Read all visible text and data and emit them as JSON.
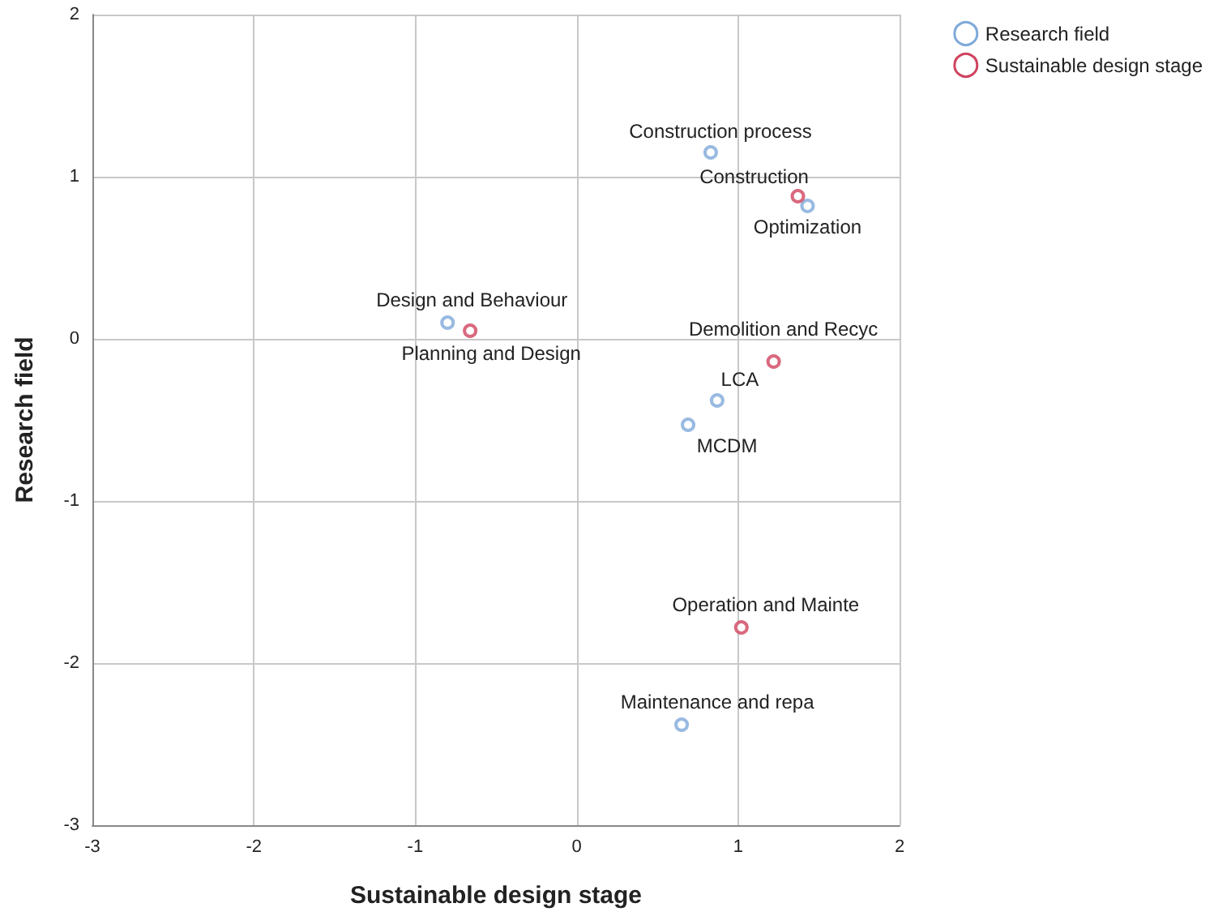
{
  "chart_data": {
    "type": "scatter",
    "xlabel": "Sustainable design stage",
    "ylabel": "Research field",
    "series": [
      {
        "name": "Research field",
        "color": "#7fa9d9",
        "x": [
          0.83,
          1.43,
          -0.8,
          0.87,
          0.69,
          0.65
        ],
        "values": [
          1.15,
          0.82,
          0.1,
          -0.38,
          -0.53,
          -2.38
        ]
      },
      {
        "name": "Sustainable design stage",
        "color": "#d0435f",
        "x": [
          1.37,
          -0.66,
          1.22,
          1.02
        ],
        "values": [
          0.88,
          0.05,
          -0.14,
          -1.78
        ]
      }
    ],
    "annotations": [
      {
        "text": "Construction process",
        "x": 0.83,
        "y": 1.15
      },
      {
        "text": "Optimization",
        "x": 1.43,
        "y": 0.82
      },
      {
        "text": "Design and Behaviour",
        "x": -0.8,
        "y": 0.1
      },
      {
        "text": "LCA",
        "x": 0.87,
        "y": -0.38
      },
      {
        "text": "MCDM",
        "x": 0.69,
        "y": -0.53
      },
      {
        "text": "Maintenance and repa",
        "x": 0.65,
        "y": -2.38
      },
      {
        "text": "Construction",
        "x": 1.37,
        "y": 0.88
      },
      {
        "text": "Planning and Design",
        "x": -0.66,
        "y": 0.05
      },
      {
        "text": "Demolition and Recyc",
        "x": 1.22,
        "y": -0.14
      },
      {
        "text": "Operation and Mainte",
        "x": 1.02,
        "y": -1.78
      }
    ],
    "xlim": [
      -3,
      2
    ],
    "xticks": [
      -3,
      -2,
      -1,
      0,
      1,
      2
    ],
    "ylim": [
      -3,
      2
    ],
    "yticks": [
      -3,
      -2,
      -1,
      0,
      1,
      2
    ],
    "grid": true,
    "legend": "top right",
    "marker": "circle"
  }
}
